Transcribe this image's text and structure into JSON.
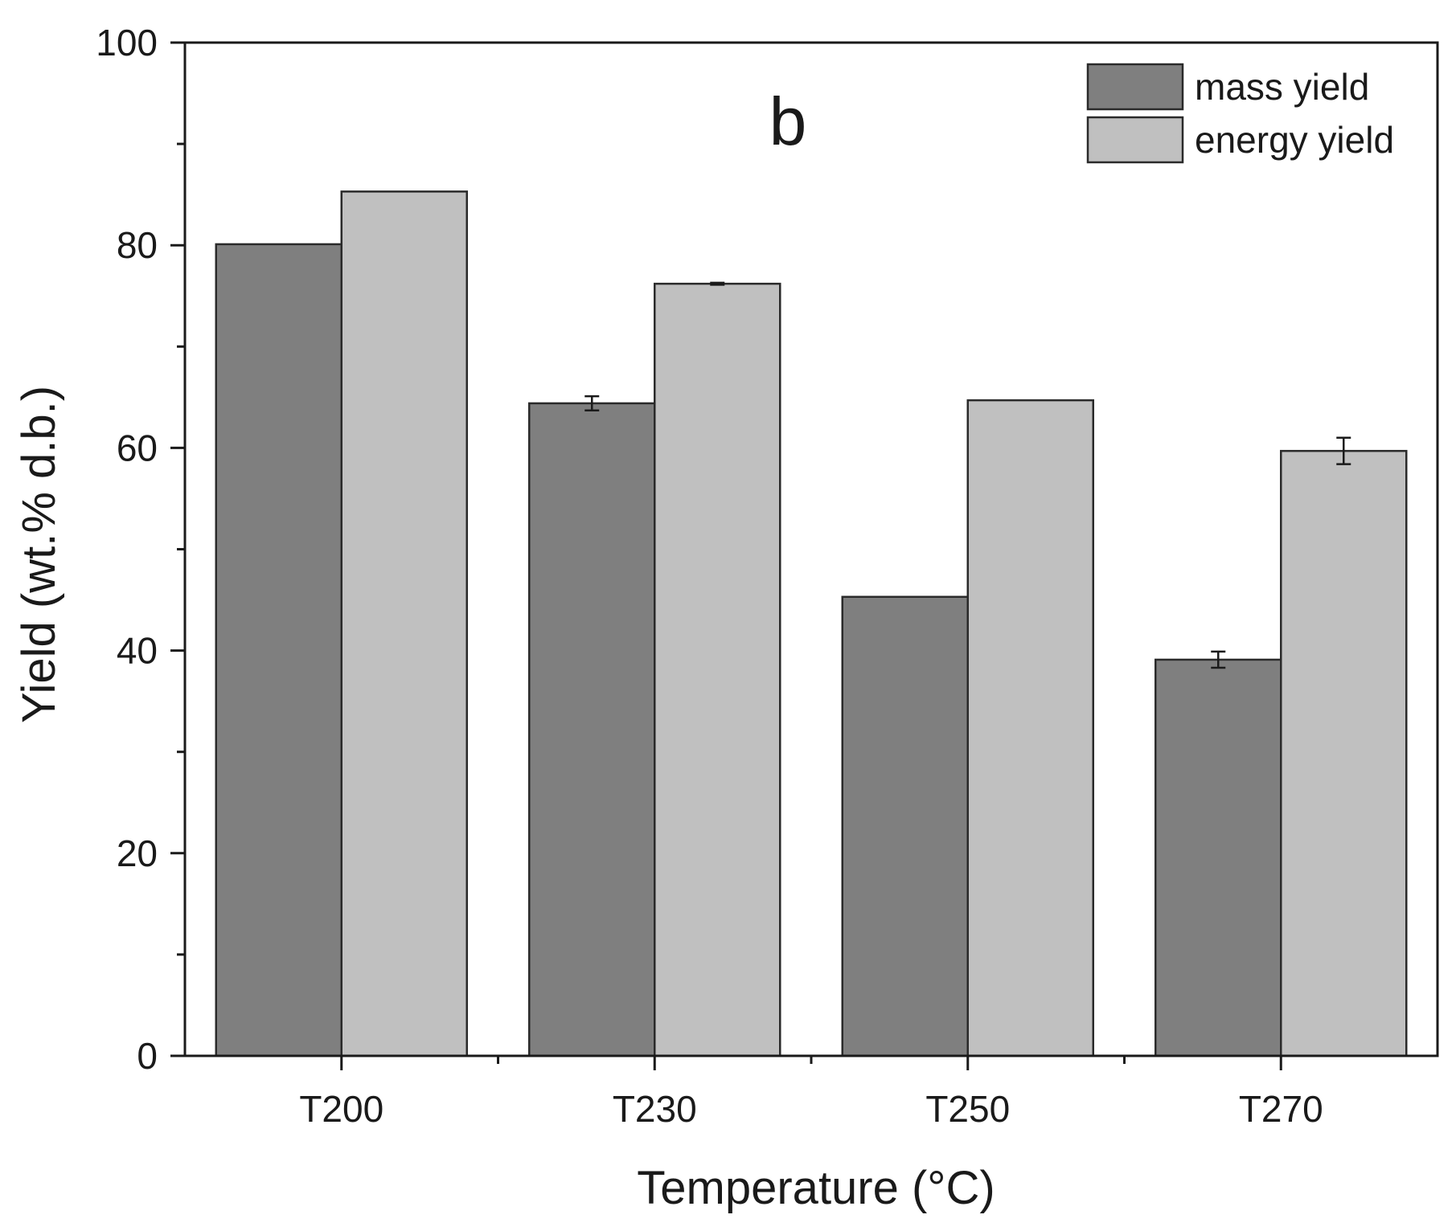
{
  "chart_data": {
    "type": "bar",
    "panel_label": "b",
    "categories": [
      "T200",
      "T230",
      "T250",
      "T270"
    ],
    "series": [
      {
        "name": "mass yield",
        "color": "#7f7f7f",
        "values": [
          80.1,
          64.4,
          45.3,
          39.1
        ],
        "errors": [
          0,
          0.7,
          0,
          0.8
        ]
      },
      {
        "name": "energy yield",
        "color": "#c0c0c0",
        "values": [
          85.3,
          76.2,
          64.7,
          59.7
        ],
        "errors": [
          0,
          0.1,
          0,
          1.3
        ]
      }
    ],
    "xlabel": "Temperature (°C)",
    "ylabel": "Yield (wt.% d.b.)",
    "ylim": [
      0,
      100
    ],
    "yticks": [
      "0",
      "20",
      "40",
      "60",
      "80",
      "100"
    ],
    "legend_position": "top-right",
    "grid": false
  }
}
